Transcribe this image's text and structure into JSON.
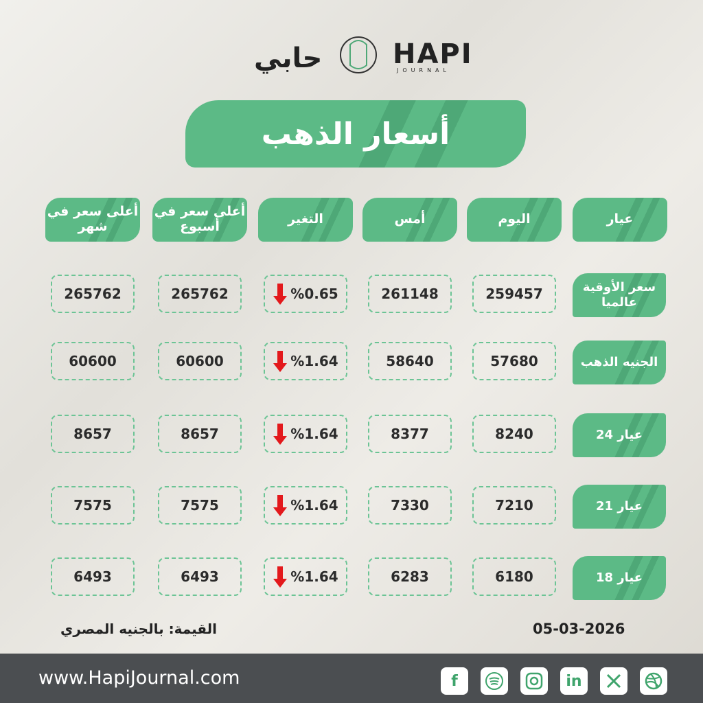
{
  "logo": {
    "arabic": "حابي",
    "latin": "HAPI",
    "tagline": "JOURNAL"
  },
  "title": "أسعار الذهب",
  "table": {
    "headers": [
      "عيار",
      "اليوم",
      "أمس",
      "التغير",
      "أعلى سعر في أسبوع",
      "أعلى سعر في شهر"
    ],
    "rows": [
      [
        "سعر الأوقية عالميا",
        259457,
        261148,
        "%0.65",
        265762,
        265762
      ],
      [
        "الجنيه الذهب",
        57680,
        58640,
        "%1.64",
        60600,
        60600
      ],
      [
        "عيار 24",
        8240,
        8377,
        "%1.64",
        8657,
        8657
      ],
      [
        "عيار 21",
        7210,
        7330,
        "%1.64",
        7575,
        7575
      ],
      [
        "عيار 18",
        6180,
        6283,
        "%1.64",
        6493,
        6493
      ]
    ]
  },
  "note": "القيمة: بالجنيه المصري",
  "date": "05-03-2026",
  "footer": {
    "website": "www.HapiJournal.com",
    "social": [
      "f",
      "in"
    ]
  }
}
